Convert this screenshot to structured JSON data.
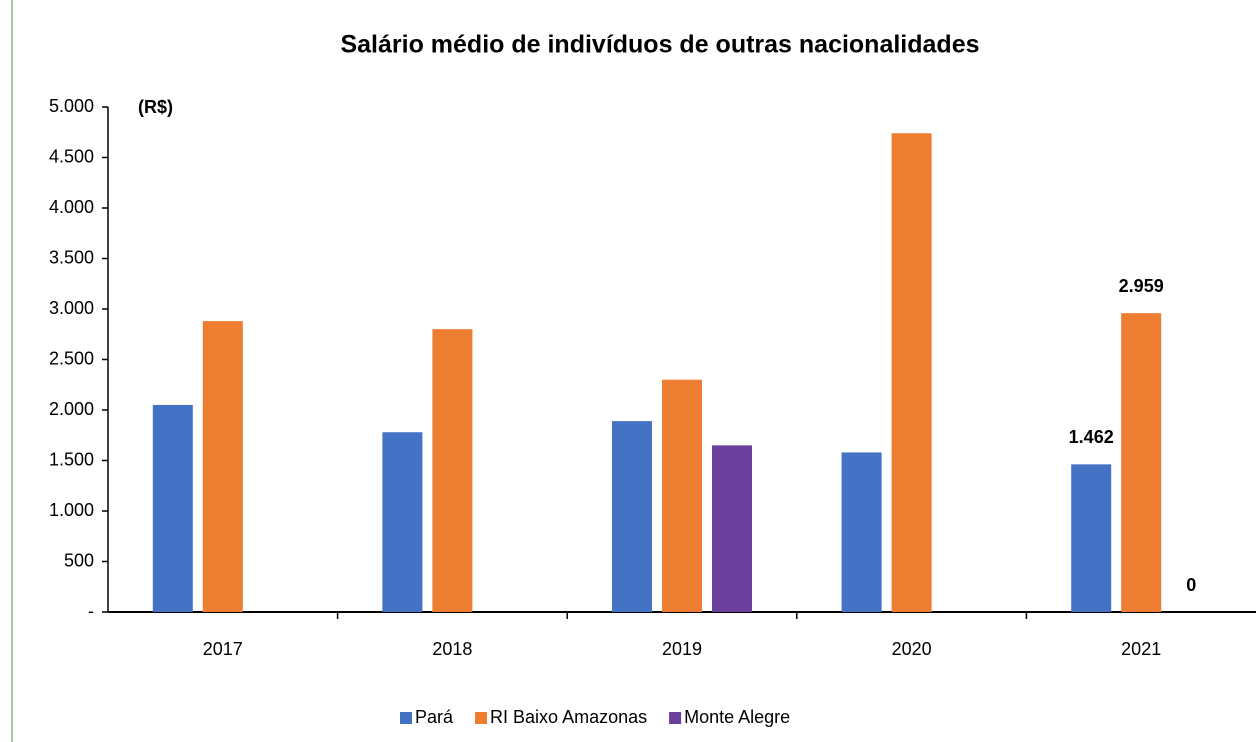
{
  "chart_data": {
    "type": "bar",
    "title": "Salário médio de indivíduos de outras nacionalidades",
    "y_axis_label": "(R$)",
    "categories": [
      "2017",
      "2018",
      "2019",
      "2020",
      "2021"
    ],
    "series": [
      {
        "name": "Pará",
        "color": "#4472c4",
        "values": [
          2050,
          1780,
          1890,
          1580,
          1462
        ],
        "value_labels": [
          null,
          null,
          null,
          null,
          "1.462"
        ]
      },
      {
        "name": "RI Baixo Amazonas",
        "color": "#ed7d31",
        "values": [
          2880,
          2800,
          2300,
          4740,
          2959
        ],
        "value_labels": [
          null,
          null,
          null,
          null,
          "2.959"
        ]
      },
      {
        "name": "Monte Alegre",
        "color": "#6a3f9b",
        "values": [
          null,
          null,
          1650,
          null,
          0
        ],
        "value_labels": [
          null,
          null,
          null,
          null,
          "0"
        ]
      }
    ],
    "ylim": [
      0,
      5000
    ],
    "yticks": [
      {
        "value": 0,
        "label": "-"
      },
      500,
      {
        "value": 1000,
        "label": "1.000"
      },
      {
        "value": 1500,
        "label": "1.500"
      },
      {
        "value": 2000,
        "label": "2.000"
      },
      {
        "value": 2500,
        "label": "2.500"
      },
      {
        "value": 3000,
        "label": "3.000"
      },
      {
        "value": 3500,
        "label": "3.500"
      },
      {
        "value": 4000,
        "label": "4.000"
      },
      {
        "value": 4500,
        "label": "4.500"
      },
      {
        "value": 5000,
        "label": "5.000"
      }
    ],
    "grid": false,
    "legend": "bottom"
  }
}
